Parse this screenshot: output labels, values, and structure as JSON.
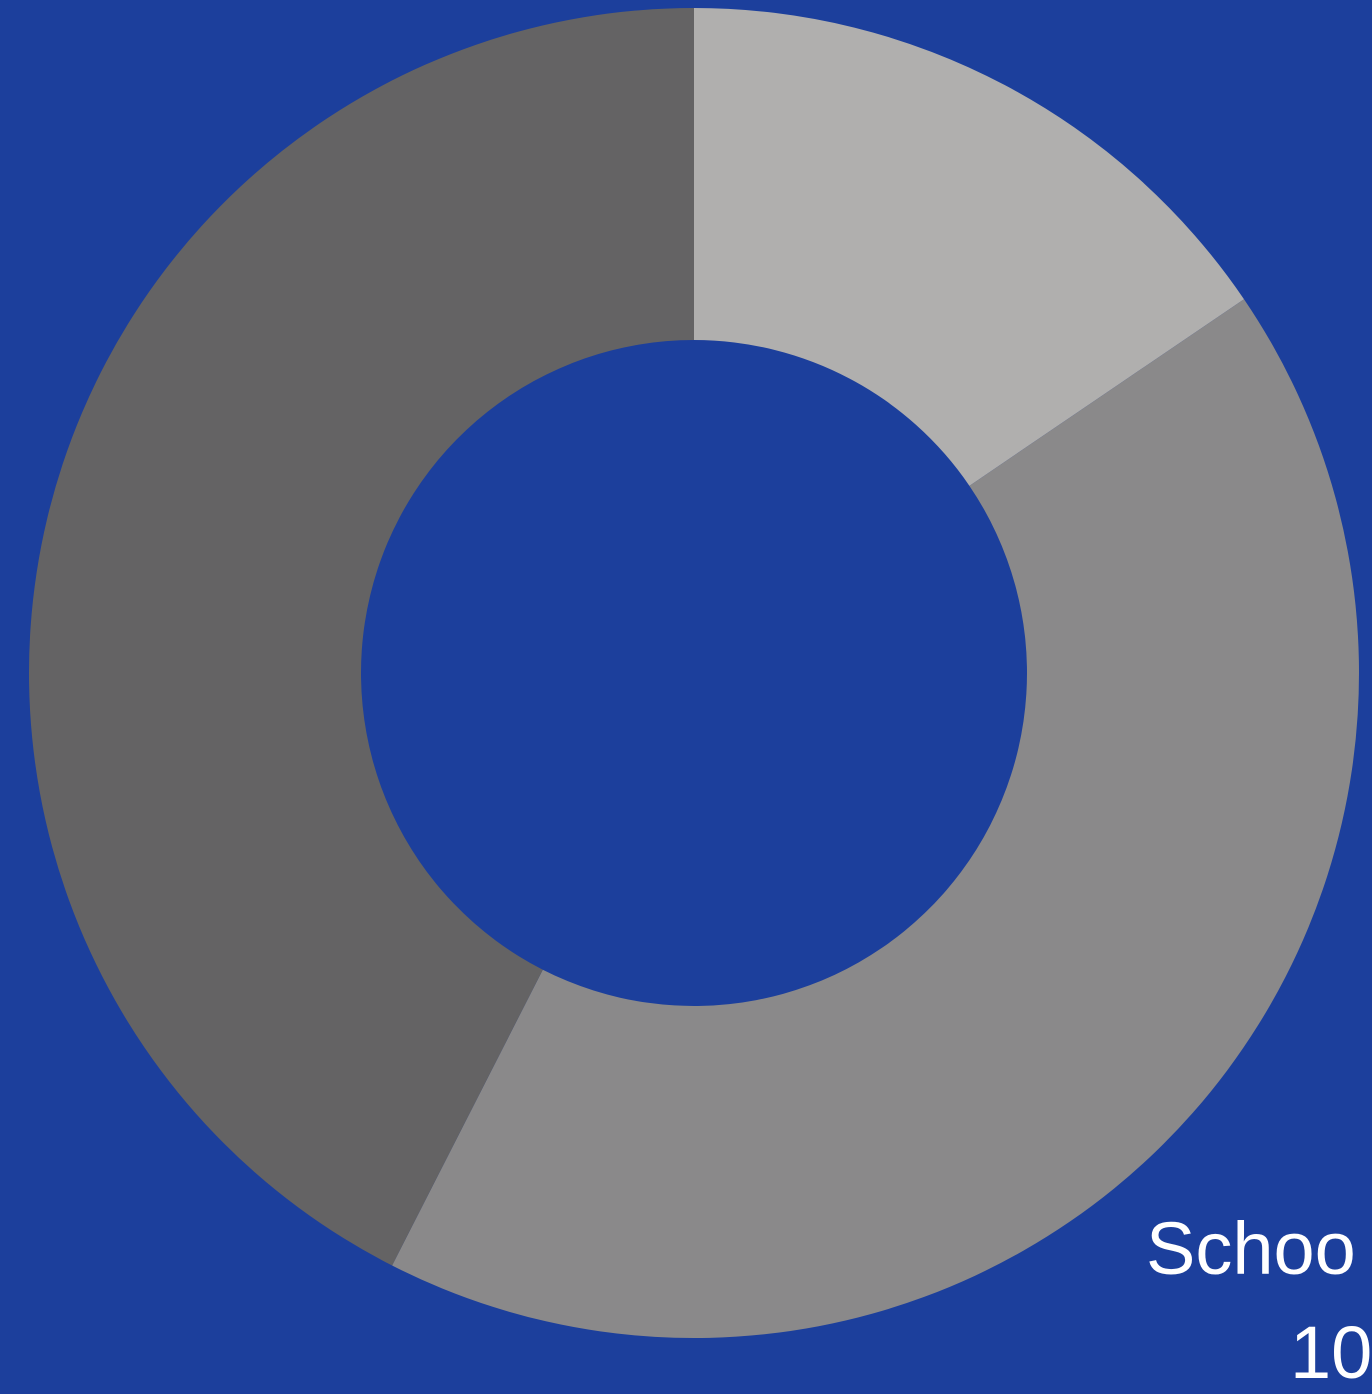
{
  "background": "#1c3f9c",
  "chart_data": {
    "type": "pie",
    "donut": true,
    "start_angle_deg": 0,
    "direction": "clockwise",
    "slices": [
      {
        "value": 15.5,
        "color": "#b0afae"
      },
      {
        "value": 42.0,
        "color": "#8a898a"
      },
      {
        "value": 42.5,
        "color": "#646364"
      }
    ],
    "labels": [
      "Schoo",
      "10"
    ]
  }
}
